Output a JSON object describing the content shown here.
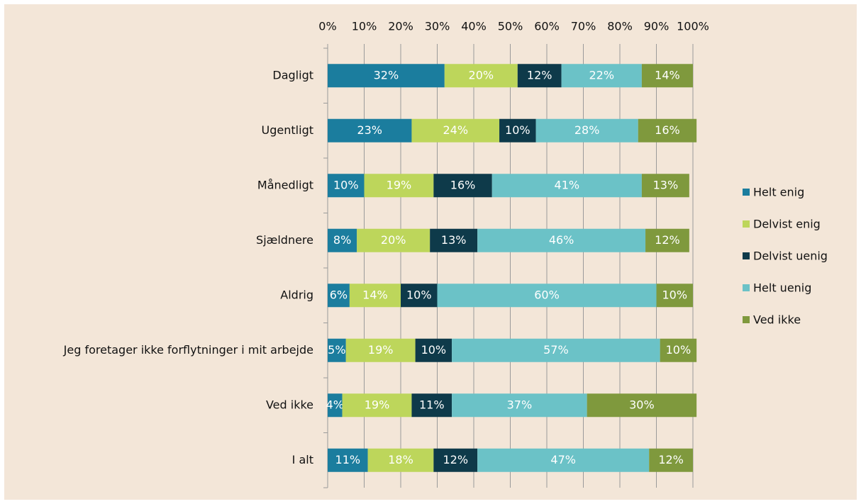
{
  "chart_data": {
    "type": "stacked_bar_horizontal",
    "categories": [
      "Dagligt",
      "Ugentligt",
      "Månedligt",
      "Sjældnere",
      "Aldrig",
      "Jeg foretager ikke forflytninger i mit arbejde",
      "Ved ikke",
      "I alt"
    ],
    "series": [
      {
        "name": "Helt enig",
        "color": "#1b7d9e",
        "values": [
          32,
          23,
          10,
          8,
          6,
          5,
          4,
          11
        ],
        "value_labels": [
          "32%",
          "23%",
          "10%",
          "8%",
          "6%",
          "5%",
          "4%",
          "11%"
        ]
      },
      {
        "name": "Delvist enig",
        "color": "#bdd65b",
        "values": [
          20,
          24,
          19,
          20,
          14,
          19,
          19,
          18
        ],
        "value_labels": [
          "20%",
          "24%",
          "19%",
          "20%",
          "14%",
          "19%",
          "19%",
          "18%"
        ]
      },
      {
        "name": "Delvist uenig",
        "color": "#0e3a4a",
        "values": [
          12,
          10,
          16,
          13,
          10,
          10,
          11,
          12
        ],
        "value_labels": [
          "12%",
          "10%",
          "16%",
          "13%",
          "10%",
          "10%",
          "11%",
          "12%"
        ]
      },
      {
        "name": "Helt uenig",
        "color": "#6bc2c7",
        "values": [
          22,
          28,
          41,
          46,
          60,
          57,
          37,
          47
        ],
        "value_labels": [
          "22%",
          "28%",
          "41%",
          "46%",
          "60%",
          "57%",
          "37%",
          "47%"
        ]
      },
      {
        "name": "Ved ikke",
        "color": "#7f993d",
        "values": [
          14,
          16,
          13,
          12,
          10,
          10,
          30,
          12
        ],
        "value_labels": [
          "14%",
          "16%",
          "13%",
          "12%",
          "10%",
          "10%",
          "30%",
          "12%"
        ]
      }
    ],
    "xlim": [
      0,
      100
    ],
    "xticks": [
      {
        "value": 0,
        "label": "0%"
      },
      {
        "value": 10,
        "label": "10%"
      },
      {
        "value": 20,
        "label": "20%"
      },
      {
        "value": 30,
        "label": "30%"
      },
      {
        "value": 40,
        "label": "40%"
      },
      {
        "value": 50,
        "label": "50%"
      },
      {
        "value": 60,
        "label": "60%"
      },
      {
        "value": 70,
        "label": "70%"
      },
      {
        "value": 80,
        "label": "80%"
      },
      {
        "value": 90,
        "label": "90%"
      },
      {
        "value": 100,
        "label": "100%"
      }
    ],
    "grid": true,
    "legend": "right"
  }
}
